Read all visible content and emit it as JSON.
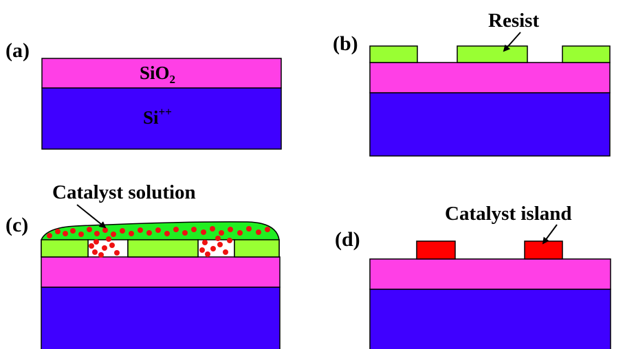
{
  "colors": {
    "oxide": "#FF3FE6",
    "substrate": "#3F00FF",
    "resist": "#99FF33",
    "solution": "#22EE22",
    "particle": "#EE1111",
    "island": "#FF0000",
    "outline": "#000000"
  },
  "panels": {
    "a": {
      "label": "(a)",
      "oxide_label": "SiO",
      "oxide_subscript": "2",
      "substrate_label": "Si",
      "substrate_superscript": "++"
    },
    "b": {
      "label": "(b)",
      "callout": "Resist"
    },
    "c": {
      "label": "(c)",
      "callout": "Catalyst solution"
    },
    "d": {
      "label": "(d)",
      "callout": "Catalyst island"
    }
  }
}
